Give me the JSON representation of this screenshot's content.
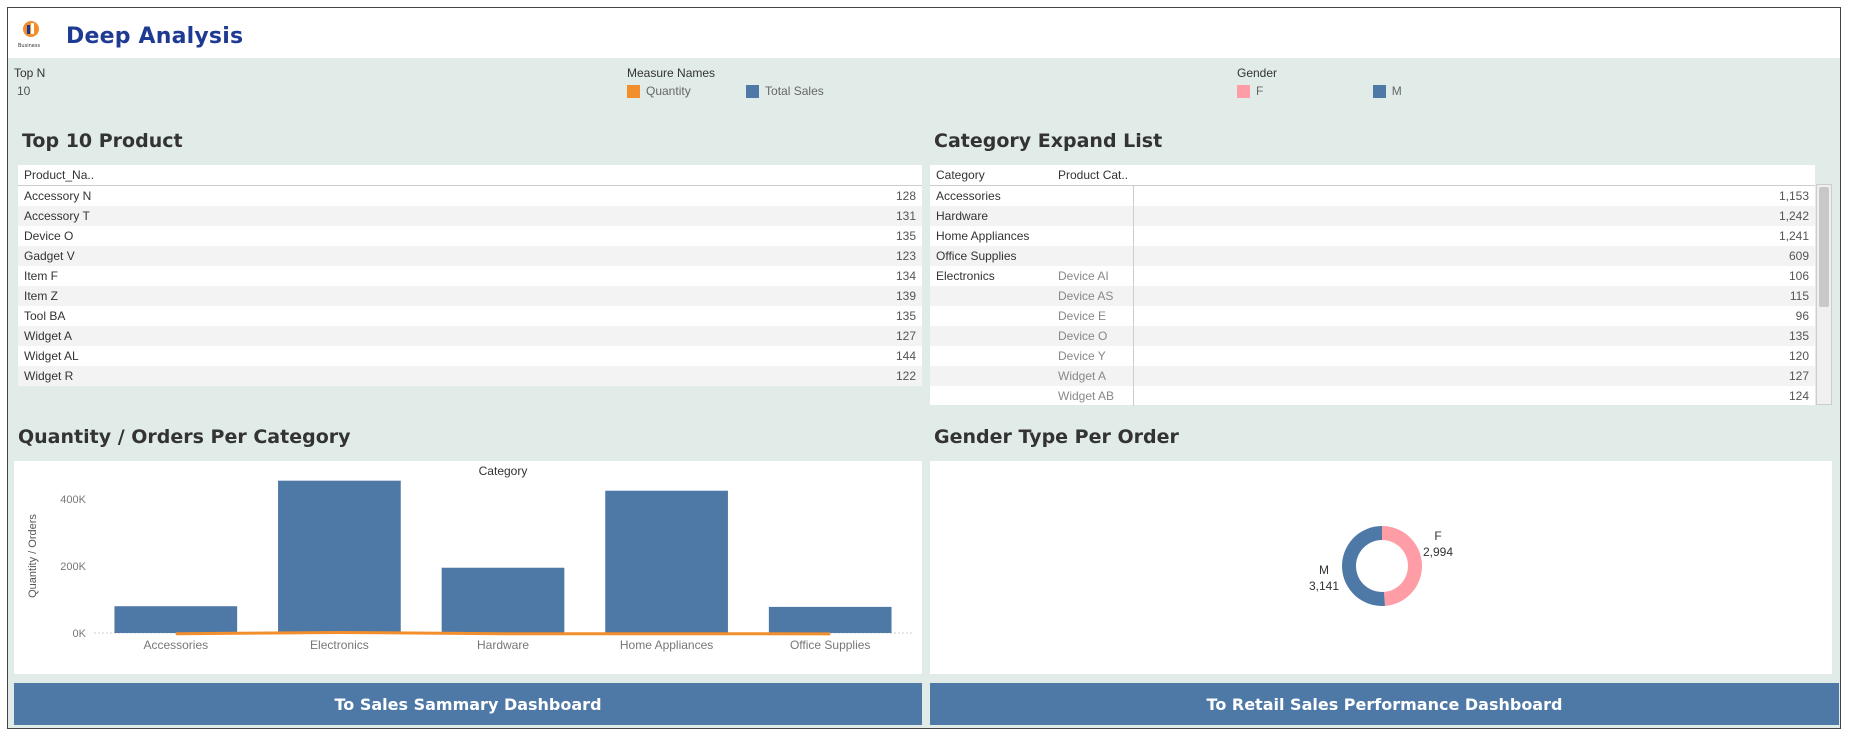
{
  "header": {
    "title": "Deep Analysis",
    "logo_text": "Business"
  },
  "filters": {
    "top_n": {
      "label": "Top N",
      "value": "10"
    },
    "measure_names": {
      "label": "Measure Names",
      "items": [
        {
          "label": "Quantity",
          "color": "#f28e2b"
        },
        {
          "label": "Total Sales",
          "color": "#4e79a7"
        }
      ]
    },
    "gender": {
      "label": "Gender",
      "items": [
        {
          "label": "F",
          "color": "#ff9da7"
        },
        {
          "label": "M",
          "color": "#4e79a7"
        }
      ]
    }
  },
  "top_products": {
    "title": "Top 10 Product",
    "column": "Product_Na..",
    "rows": [
      {
        "name": "Accessory N",
        "value": "128"
      },
      {
        "name": "Accessory T",
        "value": "131"
      },
      {
        "name": "Device O",
        "value": "135"
      },
      {
        "name": "Gadget V",
        "value": "123"
      },
      {
        "name": "Item F",
        "value": "134"
      },
      {
        "name": "Item Z",
        "value": "139"
      },
      {
        "name": "Tool BA",
        "value": "135"
      },
      {
        "name": "Widget A",
        "value": "127"
      },
      {
        "name": "Widget AL",
        "value": "144"
      },
      {
        "name": "Widget R",
        "value": "122"
      }
    ]
  },
  "category_list": {
    "title": "Category Expand List",
    "columns": [
      "Category",
      "Product Cat.."
    ],
    "rows": [
      {
        "category": "Accessories",
        "product": "",
        "value": "1,153"
      },
      {
        "category": "Hardware",
        "product": "",
        "value": "1,242"
      },
      {
        "category": "Home Appliances",
        "product": "",
        "value": "1,241"
      },
      {
        "category": "Office Supplies",
        "product": "",
        "value": "609"
      },
      {
        "category": "Electronics",
        "product": "Device AI",
        "value": "106"
      },
      {
        "category": "",
        "product": "Device AS",
        "value": "115"
      },
      {
        "category": "",
        "product": "Device E",
        "value": "96"
      },
      {
        "category": "",
        "product": "Device O",
        "value": "135"
      },
      {
        "category": "",
        "product": "Device Y",
        "value": "120"
      },
      {
        "category": "",
        "product": "Widget A",
        "value": "127"
      },
      {
        "category": "",
        "product": "Widget AB",
        "value": "124"
      }
    ]
  },
  "bar_section": {
    "title": "Quantity / Orders Per Category"
  },
  "gender_section": {
    "title": "Gender Type Per Order"
  },
  "chart_data": [
    {
      "type": "bar",
      "title": "Category",
      "xlabel": "",
      "ylabel": "Quantity / Orders",
      "categories": [
        "Accessories",
        "Electronics",
        "Hardware",
        "Home Appliances",
        "Office Supplies"
      ],
      "series": [
        {
          "name": "Total Sales",
          "values": [
            80000,
            455000,
            195000,
            425000,
            78000
          ],
          "color": "#4e79a7"
        },
        {
          "name": "Quantity",
          "values": [
            1153,
            6000,
            1242,
            1241,
            609
          ],
          "color": "#f28e2b"
        }
      ],
      "ylim": [
        0,
        460000
      ],
      "yticks": [
        {
          "value": 0,
          "label": "0K"
        },
        {
          "value": 200000,
          "label": "200K"
        },
        {
          "value": 400000,
          "label": "400K"
        }
      ]
    },
    {
      "type": "pie",
      "title": "Gender Type Per Order",
      "slices": [
        {
          "label": "F",
          "value": 2994,
          "display": "2,994",
          "color": "#ff9da7"
        },
        {
          "label": "M",
          "value": 3141,
          "display": "3,141",
          "color": "#4e79a7"
        }
      ]
    }
  ],
  "buttons": {
    "left": "To Sales Sammary Dashboard",
    "right": "To Retail Sales Performance Dashboard"
  }
}
